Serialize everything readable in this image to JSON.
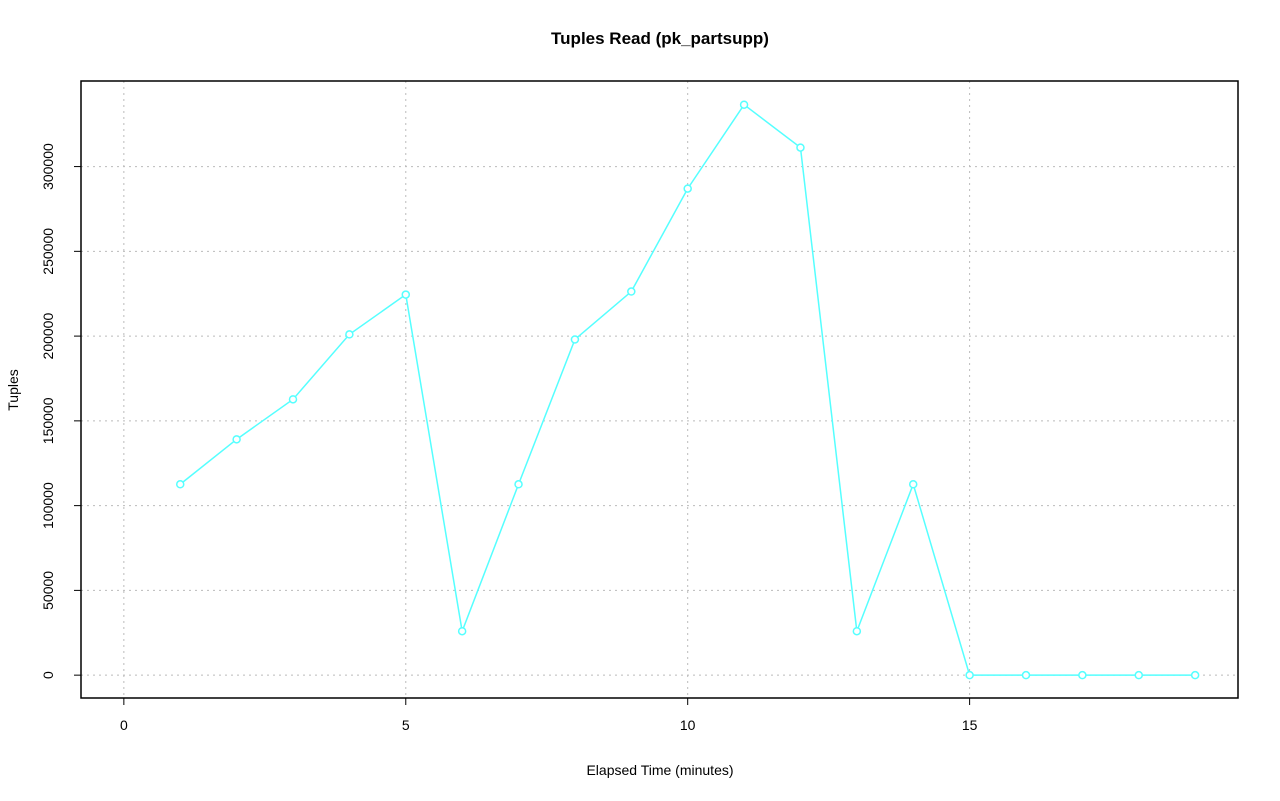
{
  "chart_data": {
    "type": "line",
    "title": "Tuples Read (pk_partsupp)",
    "xlabel": "Elapsed Time (minutes)",
    "ylabel": "Tuples",
    "x": [
      1,
      2,
      3,
      4,
      5,
      6,
      7,
      8,
      9,
      10,
      11,
      12,
      13,
      14,
      15,
      16,
      17,
      18,
      19
    ],
    "series": [
      {
        "name": "pk_partsupp",
        "color": "#55ffff",
        "values": [
          112600,
          139100,
          162700,
          201000,
          224500,
          25900,
          112600,
          198000,
          226300,
          287000,
          336500,
          311200,
          25900,
          112600,
          0,
          0,
          0,
          0,
          0
        ]
      }
    ],
    "xlim": [
      -0.76,
      19.76
    ],
    "xticks": [
      0,
      5,
      10,
      15
    ],
    "ylim": [
      -13480,
      350480
    ],
    "yticks": [
      0,
      50000,
      100000,
      150000,
      200000,
      250000,
      300000
    ],
    "grid": true
  }
}
